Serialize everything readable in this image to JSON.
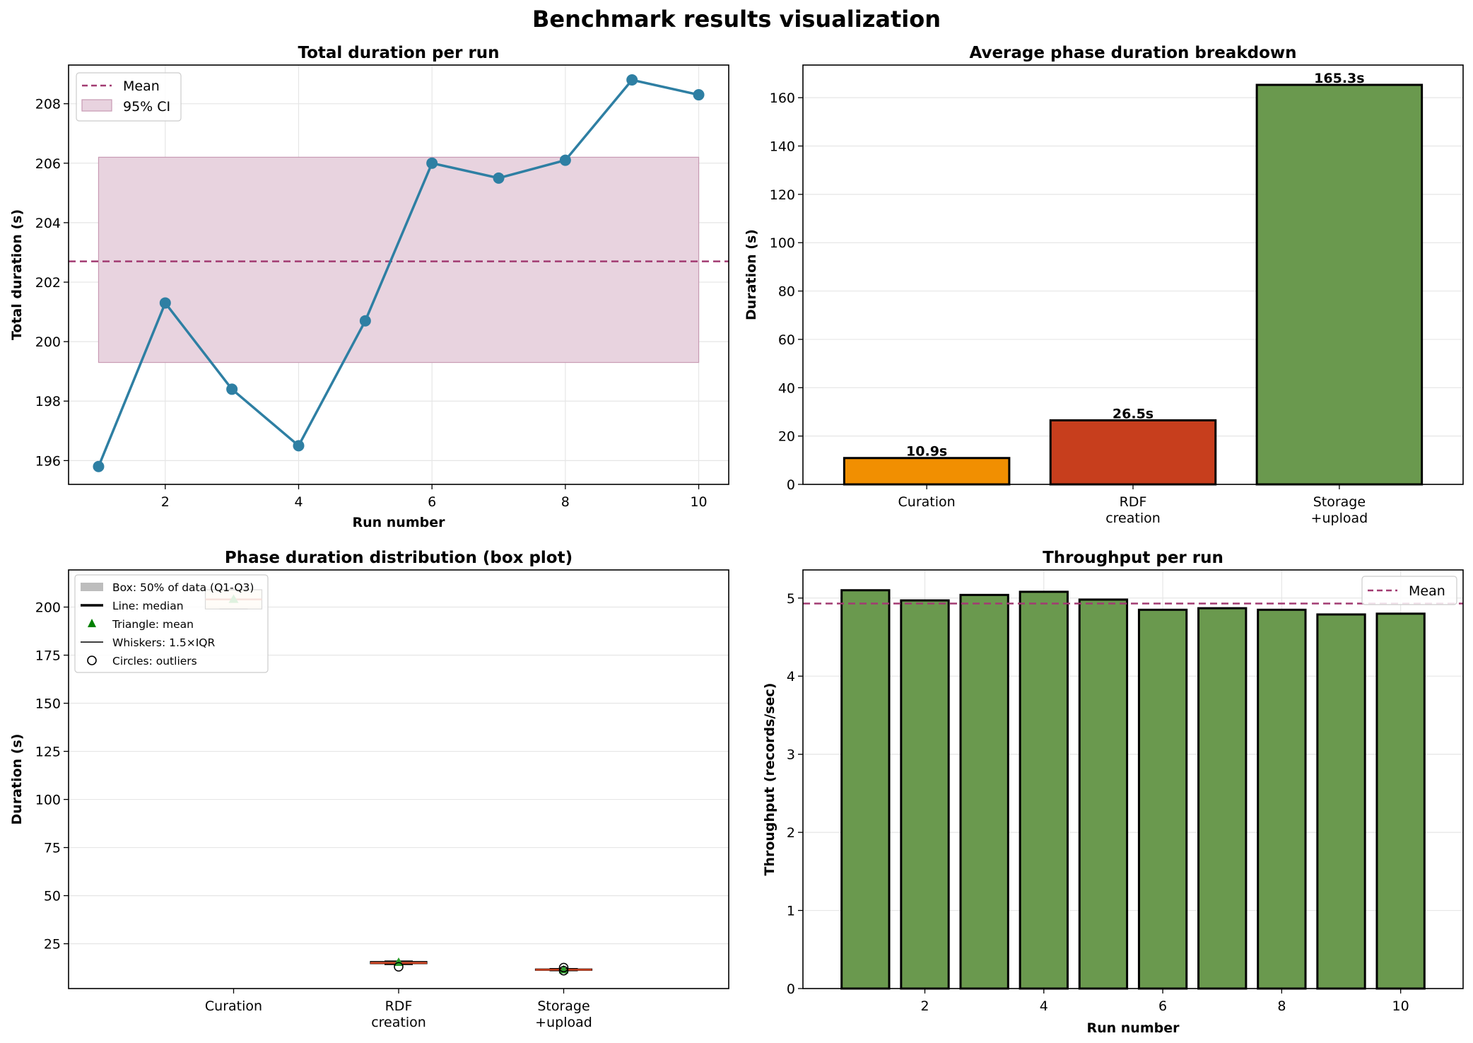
{
  "figure": {
    "suptitle": "Benchmark results visualization"
  },
  "colors": {
    "line": "#2e7fa3",
    "mean": "#a23b72",
    "ci_fill": "#e8d3df",
    "ci_edge": "#c89ab3",
    "curation": "#f18f01",
    "rdf": "#c73e1d",
    "storage": "#6a994e",
    "grid": "#e6e6e6"
  },
  "chart_data": [
    {
      "type": "line",
      "title": "Total duration per run",
      "xlabel": "Run number",
      "ylabel": "Total duration (s)",
      "x": [
        1,
        2,
        3,
        4,
        5,
        6,
        7,
        8,
        9,
        10
      ],
      "y": [
        195.8,
        201.3,
        198.4,
        196.5,
        200.7,
        206.0,
        205.5,
        206.1,
        208.8,
        208.3
      ],
      "xlim": [
        0.55,
        10.45
      ],
      "ylim": [
        195.2,
        209.3
      ],
      "xticks": [
        2,
        4,
        6,
        8,
        10
      ],
      "yticks": [
        196,
        198,
        200,
        202,
        204,
        206,
        208
      ],
      "mean": 202.7,
      "ci95": [
        199.3,
        206.2
      ],
      "legend": {
        "position": "top-left",
        "entries": [
          "Mean",
          "95% CI"
        ]
      },
      "grid": true
    },
    {
      "type": "bar",
      "title": "Average phase duration breakdown",
      "xlabel": "",
      "ylabel": "Duration (s)",
      "categories": [
        "Curation",
        "RDF\ncreation",
        "Storage\n+upload"
      ],
      "values": [
        10.9,
        26.5,
        165.3
      ],
      "labels": [
        "10.9s",
        "26.5s",
        "165.3s"
      ],
      "ylim": [
        0,
        173.5
      ],
      "yticks": [
        0,
        20,
        40,
        60,
        80,
        100,
        120,
        140,
        160
      ],
      "grid": true
    },
    {
      "type": "box",
      "title": "Phase duration distribution (box plot)",
      "xlabel": "",
      "ylabel": "Duration (s)",
      "categories": [
        "Curation",
        "RDF\ncreation",
        "Storage\n+upload"
      ],
      "boxes": [
        {
          "name": "Curation",
          "q1": 199,
          "median": 204,
          "q3": 209,
          "whisker_low": 199,
          "whisker_high": 209,
          "mean": 204,
          "outliers": []
        },
        {
          "name": "RDF creation",
          "q1": 14.6,
          "median": 15.0,
          "q3": 15.8,
          "whisker_low": 14.2,
          "whisker_high": 16.0,
          "mean": 15.3,
          "outliers": [
            13.0
          ]
        },
        {
          "name": "Storage +upload",
          "q1": 11.2,
          "median": 11.5,
          "q3": 11.9,
          "whisker_low": 11.0,
          "whisker_high": 12.1,
          "mean": 11.4,
          "outliers": [
            11.0,
            12.6
          ]
        }
      ],
      "ylim": [
        1.7,
        219.3
      ],
      "yticks": [
        25,
        50,
        75,
        100,
        125,
        150,
        175,
        200
      ],
      "legend": {
        "position": "top-left",
        "entries": [
          "Box: 50% of data (Q1-Q3)",
          "Line: median",
          "Triangle: mean",
          "Whiskers: 1.5×IQR",
          "Circles: outliers"
        ]
      },
      "grid": true
    },
    {
      "type": "bar",
      "title": "Throughput per run",
      "xlabel": "Run number",
      "ylabel": "Throughput (records/sec)",
      "x": [
        1,
        2,
        3,
        4,
        5,
        6,
        7,
        8,
        9,
        10
      ],
      "values": [
        5.1,
        4.97,
        5.04,
        5.08,
        4.98,
        4.85,
        4.87,
        4.85,
        4.79,
        4.8
      ],
      "mean": 4.93,
      "xlim": [
        -0.05,
        11.05
      ],
      "ylim": [
        0,
        5.36
      ],
      "xticks": [
        2,
        4,
        6,
        8,
        10
      ],
      "yticks": [
        0,
        1,
        2,
        3,
        4,
        5
      ],
      "legend": {
        "position": "top-right",
        "entries": [
          "Mean"
        ]
      },
      "grid": true
    }
  ]
}
